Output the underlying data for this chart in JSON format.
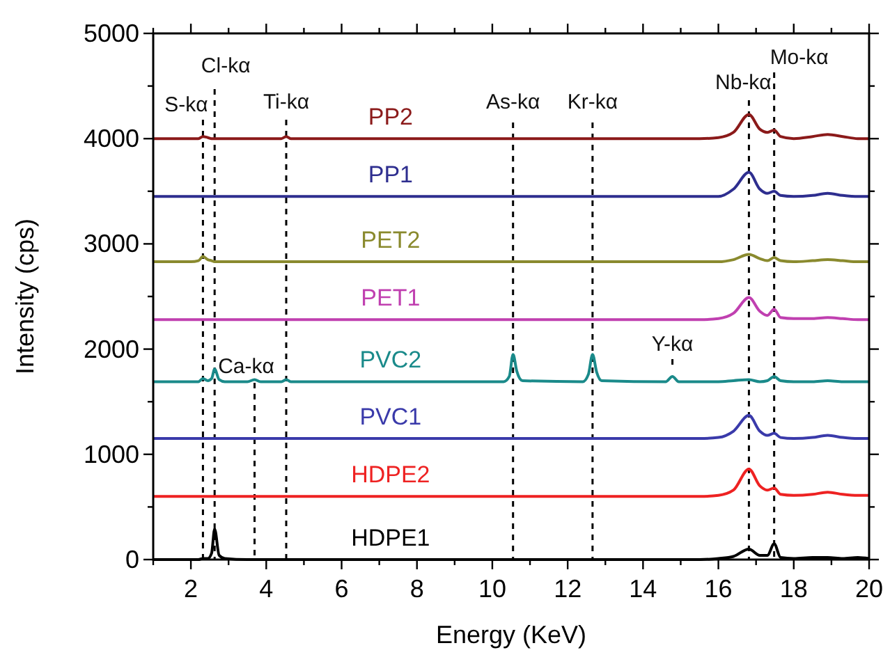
{
  "chart_data": {
    "type": "line",
    "xlabel": "Energy (KeV)",
    "ylabel": "Intensity (cps)",
    "xlim": [
      1,
      20
    ],
    "ylim": [
      0,
      5000
    ],
    "xticks": [
      {
        "value": 1,
        "label": null
      },
      2,
      {
        "value": 3,
        "label": null
      },
      4,
      {
        "value": 5,
        "label": null
      },
      6,
      {
        "value": 7,
        "label": null
      },
      8,
      {
        "value": 9,
        "label": null
      },
      10,
      {
        "value": 11,
        "label": null
      },
      12,
      {
        "value": 13,
        "label": null
      },
      14,
      {
        "value": 15,
        "label": null
      },
      16,
      {
        "value": 17,
        "label": null
      },
      18,
      {
        "value": 19,
        "label": null
      },
      20
    ],
    "yticks": [
      0,
      {
        "value": 500,
        "label": null
      },
      1000,
      {
        "value": 1500,
        "label": null
      },
      2000,
      {
        "value": 2500,
        "label": null
      },
      3000,
      {
        "value": 3500,
        "label": null
      },
      4000,
      {
        "value": 4500,
        "label": null
      },
      5000
    ],
    "grid": false,
    "marker": "none",
    "line_style": "solid",
    "x": [
      1,
      2,
      2.2,
      2.32,
      2.45,
      2.55,
      2.63,
      2.75,
      2.9,
      3.5,
      3.69,
      3.85,
      4.4,
      4.53,
      4.65,
      6,
      8,
      10.3,
      10.45,
      10.55,
      10.65,
      10.8,
      12.4,
      12.55,
      12.66,
      12.77,
      12.9,
      14.6,
      14.78,
      14.95,
      15.5,
      16.0,
      16.4,
      16.81,
      17.1,
      17.3,
      17.48,
      17.65,
      18.0,
      18.5,
      18.9,
      19.3,
      19.7,
      20
    ],
    "series": [
      {
        "name": "PP2",
        "color": "#8b1a1a",
        "values": [
          4000,
          4000,
          4000,
          4020,
          4010,
          4000,
          4000,
          4000,
          4000,
          4000,
          4000,
          4000,
          4000,
          4020,
          4000,
          4000,
          4000,
          4000,
          4000,
          4000,
          4000,
          4000,
          4000,
          4000,
          4000,
          4000,
          4000,
          4000,
          4000,
          4000,
          4000,
          4010,
          4060,
          4230,
          4090,
          4060,
          4080,
          4020,
          4000,
          4020,
          4040,
          4020,
          4000,
          4000
        ]
      },
      {
        "name": "PP1",
        "color": "#2e2e8f",
        "values": [
          3450,
          3450,
          3450,
          3450,
          3450,
          3450,
          3450,
          3450,
          3450,
          3450,
          3450,
          3450,
          3450,
          3450,
          3450,
          3450,
          3450,
          3450,
          3450,
          3450,
          3450,
          3450,
          3450,
          3450,
          3450,
          3450,
          3450,
          3450,
          3450,
          3450,
          3450,
          3450,
          3520,
          3680,
          3520,
          3480,
          3500,
          3460,
          3450,
          3460,
          3480,
          3460,
          3450,
          3450
        ]
      },
      {
        "name": "PET2",
        "color": "#8a8a2e",
        "values": [
          2830,
          2830,
          2840,
          2880,
          2850,
          2840,
          2830,
          2830,
          2830,
          2830,
          2830,
          2830,
          2830,
          2830,
          2830,
          2830,
          2830,
          2830,
          2830,
          2830,
          2830,
          2830,
          2830,
          2830,
          2830,
          2830,
          2830,
          2830,
          2830,
          2830,
          2830,
          2830,
          2850,
          2900,
          2860,
          2840,
          2870,
          2840,
          2830,
          2840,
          2850,
          2840,
          2830,
          2830
        ]
      },
      {
        "name": "PET1",
        "color": "#c040b0",
        "values": [
          2280,
          2280,
          2280,
          2280,
          2280,
          2280,
          2280,
          2280,
          2280,
          2280,
          2280,
          2280,
          2280,
          2280,
          2280,
          2280,
          2280,
          2280,
          2280,
          2280,
          2280,
          2280,
          2280,
          2280,
          2280,
          2280,
          2280,
          2280,
          2280,
          2280,
          2280,
          2290,
          2340,
          2490,
          2360,
          2320,
          2380,
          2300,
          2290,
          2290,
          2300,
          2290,
          2280,
          2280
        ]
      },
      {
        "name": "PVC2",
        "color": "#1a8a8a",
        "values": [
          1690,
          1690,
          1690,
          1720,
          1700,
          1720,
          1810,
          1710,
          1690,
          1690,
          1710,
          1690,
          1690,
          1710,
          1690,
          1690,
          1690,
          1690,
          1740,
          1950,
          1790,
          1700,
          1690,
          1760,
          1950,
          1780,
          1700,
          1690,
          1740,
          1690,
          1690,
          1690,
          1700,
          1710,
          1690,
          1700,
          1740,
          1700,
          1690,
          1690,
          1700,
          1690,
          1690,
          1690
        ]
      },
      {
        "name": "PVC1",
        "color": "#3a3aaa",
        "values": [
          1150,
          1150,
          1150,
          1150,
          1150,
          1150,
          1150,
          1150,
          1150,
          1150,
          1150,
          1150,
          1150,
          1150,
          1150,
          1150,
          1150,
          1150,
          1150,
          1150,
          1150,
          1150,
          1150,
          1150,
          1150,
          1150,
          1150,
          1150,
          1150,
          1150,
          1150,
          1160,
          1220,
          1370,
          1220,
          1180,
          1200,
          1160,
          1150,
          1160,
          1180,
          1160,
          1150,
          1150
        ]
      },
      {
        "name": "HDPE2",
        "color": "#ee2222",
        "values": [
          600,
          600,
          600,
          600,
          600,
          600,
          600,
          600,
          600,
          600,
          600,
          600,
          600,
          600,
          600,
          600,
          600,
          600,
          600,
          600,
          600,
          600,
          600,
          600,
          600,
          600,
          600,
          600,
          600,
          600,
          600,
          610,
          660,
          860,
          700,
          660,
          680,
          620,
          610,
          620,
          640,
          620,
          610,
          610
        ]
      },
      {
        "name": "HDPE1",
        "color": "#000000",
        "values": [
          0,
          0,
          0,
          10,
          10,
          60,
          290,
          40,
          10,
          0,
          0,
          0,
          0,
          0,
          0,
          0,
          0,
          0,
          0,
          0,
          0,
          0,
          0,
          0,
          0,
          0,
          0,
          0,
          0,
          0,
          0,
          10,
          30,
          100,
          40,
          40,
          150,
          20,
          10,
          20,
          20,
          10,
          20,
          10
        ]
      }
    ],
    "ref_lines": [
      {
        "axis": "x",
        "value": 2.32,
        "label": "S-kα",
        "line_style": "dashed",
        "color": "#000000"
      },
      {
        "axis": "x",
        "value": 2.63,
        "label": "Cl-kα",
        "line_style": "dashed",
        "color": "#000000"
      },
      {
        "axis": "x",
        "value": 3.69,
        "label": "Ca-kα",
        "line_style": "dashed",
        "color": "#000000"
      },
      {
        "axis": "x",
        "value": 4.53,
        "label": "Ti-kα",
        "line_style": "dashed",
        "color": "#000000"
      },
      {
        "axis": "x",
        "value": 10.55,
        "label": "As-kα",
        "line_style": "dashed",
        "color": "#000000"
      },
      {
        "axis": "x",
        "value": 12.66,
        "label": "Kr-kα",
        "line_style": "dashed",
        "color": "#000000"
      },
      {
        "axis": "x",
        "value": 14.78,
        "label": "Y-kα",
        "line_style": "dashed",
        "color": "#000000"
      },
      {
        "axis": "x",
        "value": 16.81,
        "label": "Nb-kα",
        "line_style": "dashed",
        "color": "#000000"
      },
      {
        "axis": "x",
        "value": 17.48,
        "label": "Mo-kα",
        "line_style": "dashed",
        "color": "#000000"
      }
    ]
  }
}
